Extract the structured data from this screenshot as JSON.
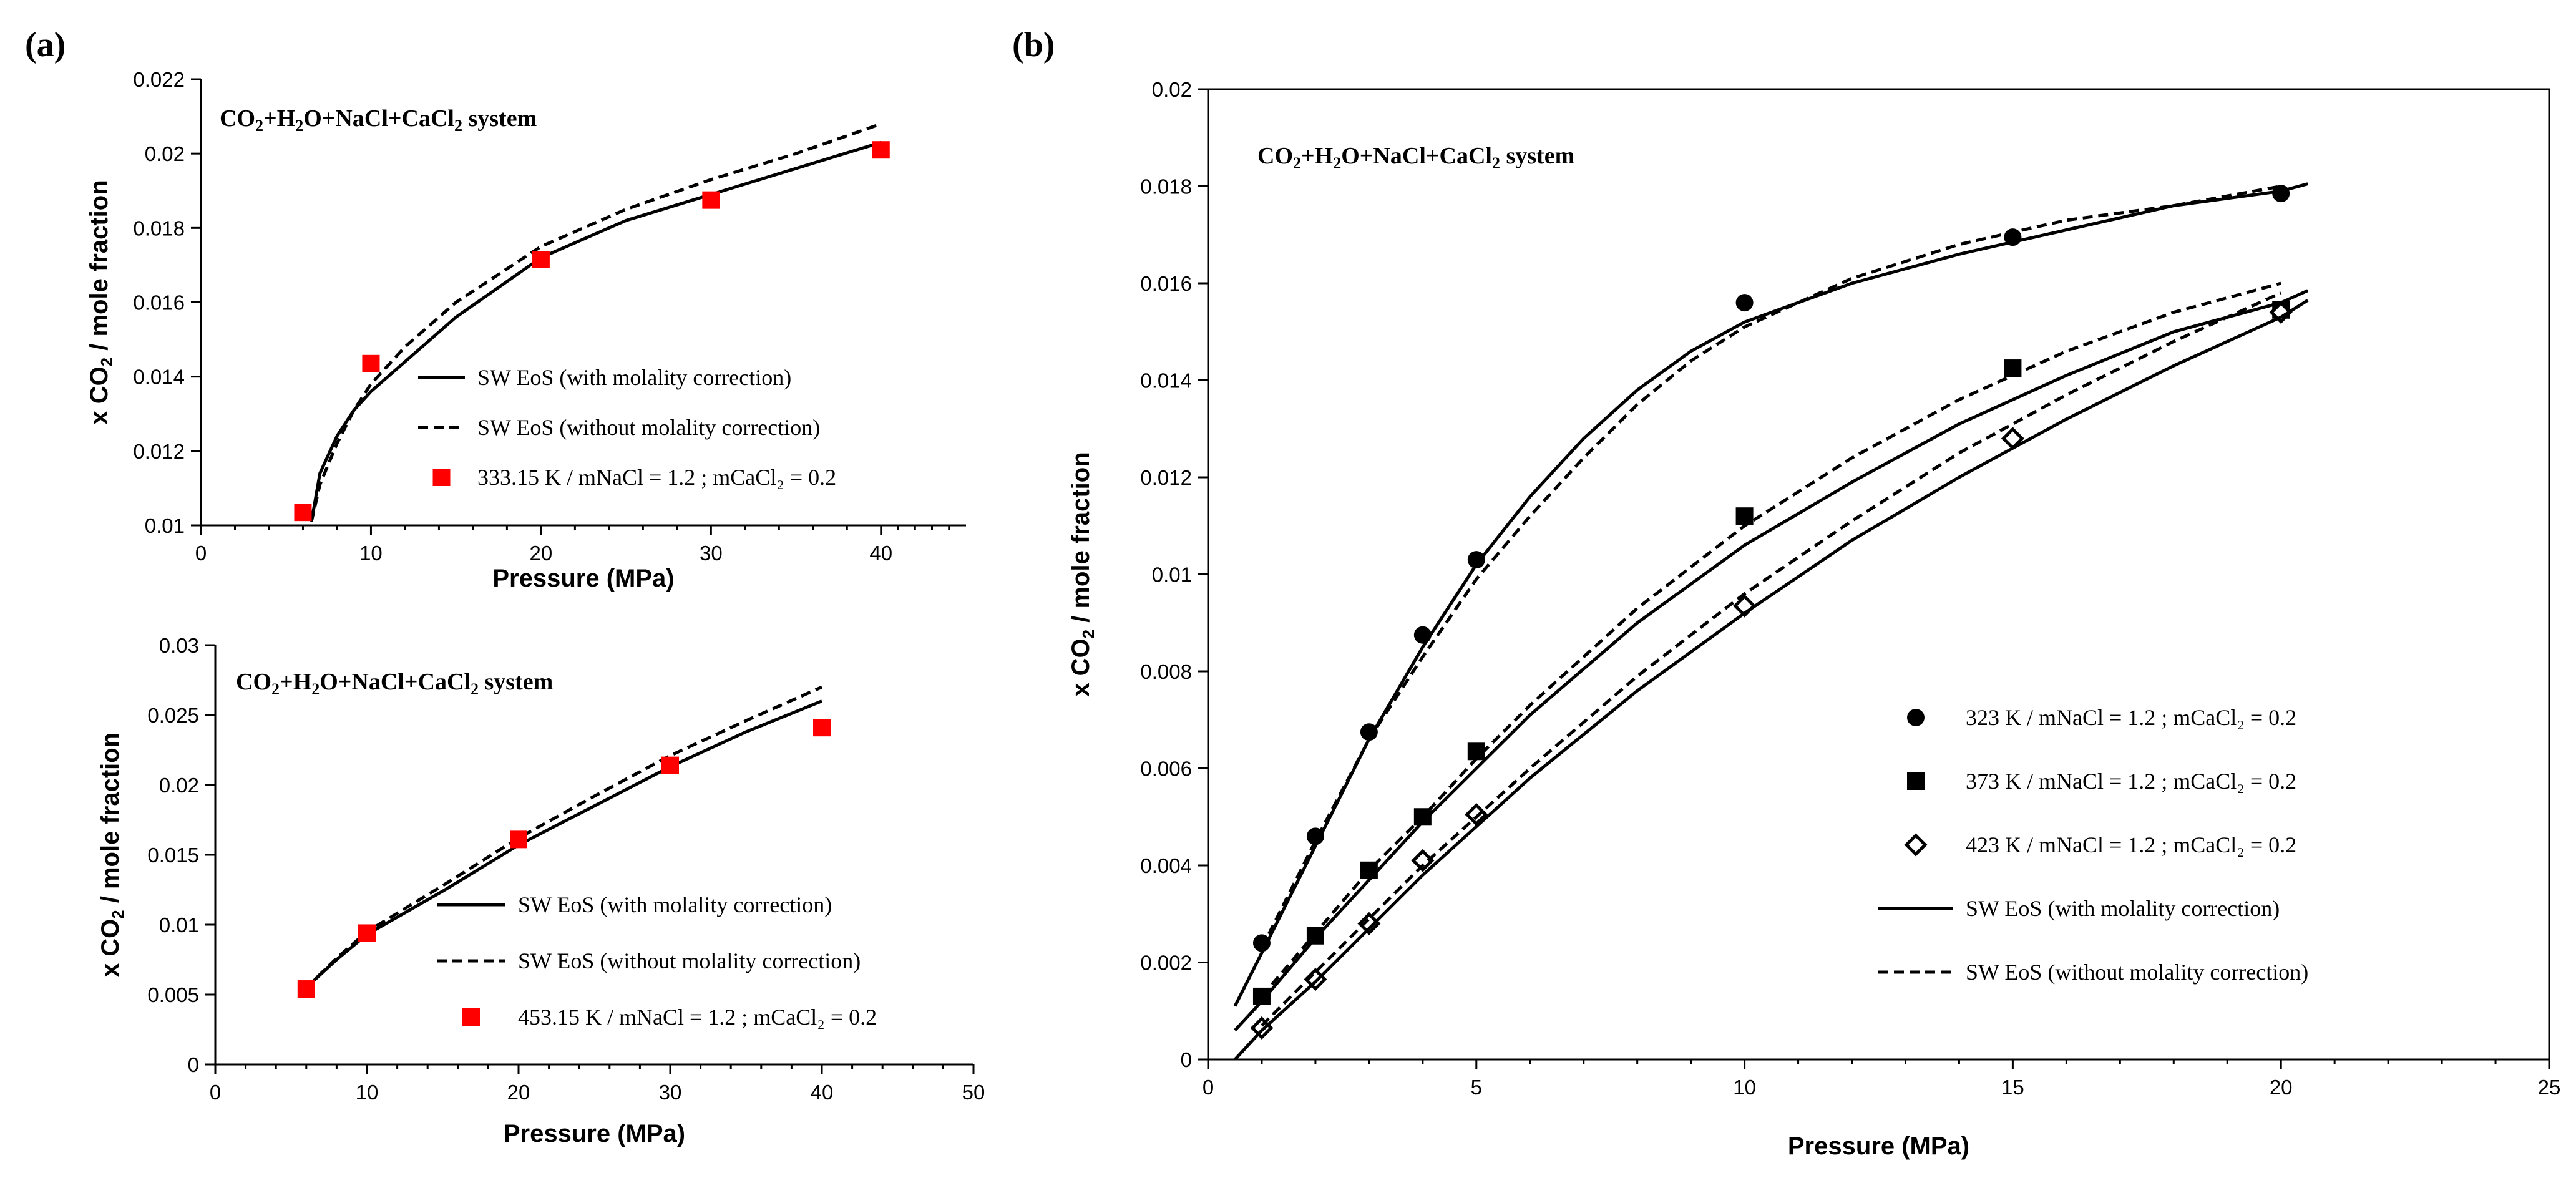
{
  "panel_labels": {
    "a": "(a)",
    "b": "(b)"
  },
  "chart_data": [
    {
      "id": "a-top",
      "type": "line",
      "title_parts": [
        "CO",
        "2",
        "+H",
        "2",
        "O+NaCl+CaCl",
        "2",
        "  system"
      ],
      "xlabel": "Pressure (MPa)",
      "ylabel_parts": [
        "x CO",
        "2",
        " / mole fraction"
      ],
      "xlim": [
        0,
        45
      ],
      "ylim": [
        0.01,
        0.022
      ],
      "xticks": [
        0,
        10,
        20,
        30,
        40
      ],
      "yticks": [
        0.01,
        0.012,
        0.014,
        0.016,
        0.018,
        0.02,
        0.022
      ],
      "ytick_labels": [
        "0.01",
        "0.012",
        "0.014",
        "0.016",
        "0.018",
        "0.02",
        "0.022"
      ],
      "series": [
        {
          "name": "SW EoS (with molality correction)",
          "style": "solid",
          "x": [
            6.5,
            7,
            8,
            9,
            10,
            12,
            15,
            20,
            25,
            30,
            35,
            40
          ],
          "y": [
            0.0101,
            0.0114,
            0.0124,
            0.0131,
            0.0136,
            0.0144,
            0.0156,
            0.0172,
            0.0182,
            0.0189,
            0.0196,
            0.0203
          ]
        },
        {
          "name": "SW EoS (without molality correction)",
          "style": "dashed",
          "x": [
            6.5,
            7,
            8,
            9,
            10,
            12,
            15,
            20,
            25,
            30,
            35,
            40
          ],
          "y": [
            0.0101,
            0.0111,
            0.0122,
            0.0131,
            0.0138,
            0.0148,
            0.016,
            0.0175,
            0.0185,
            0.0193,
            0.02,
            0.0208
          ]
        },
        {
          "name": "333.15 K / mNaCl = 1.2 ; mCaCl₂ = 0.2",
          "style": "marker",
          "marker": "red-square",
          "x": [
            6,
            10,
            20,
            30,
            40
          ],
          "y": [
            0.01035,
            0.01435,
            0.01715,
            0.01875,
            0.0201
          ]
        }
      ]
    },
    {
      "id": "a-bottom",
      "type": "line",
      "title_parts": [
        "CO",
        "2",
        "+H",
        "2",
        "O+NaCl+CaCl",
        "2",
        "  system"
      ],
      "xlabel": "Pressure (MPa)",
      "ylabel_parts": [
        "x CO",
        "2",
        " / mole fraction"
      ],
      "xlim": [
        0,
        50
      ],
      "ylim": [
        0,
        0.03
      ],
      "xticks": [
        0,
        10,
        20,
        30,
        40,
        50
      ],
      "yticks": [
        0,
        0.005,
        0.01,
        0.015,
        0.02,
        0.025,
        0.03
      ],
      "ytick_labels": [
        "0",
        "0.005",
        "0.01",
        "0.015",
        "0.02",
        "0.025",
        "0.03"
      ],
      "series": [
        {
          "name": "SW EoS (with molality correction)",
          "style": "solid",
          "x": [
            6,
            8,
            10,
            15,
            20,
            25,
            30,
            35,
            40
          ],
          "y": [
            0.0055,
            0.0075,
            0.0093,
            0.0124,
            0.0157,
            0.0185,
            0.0213,
            0.0238,
            0.026
          ]
        },
        {
          "name": "SW EoS (without molality correction)",
          "style": "dashed",
          "x": [
            6,
            8,
            10,
            15,
            20,
            25,
            30,
            35,
            40
          ],
          "y": [
            0.0055,
            0.0076,
            0.0095,
            0.0128,
            0.0162,
            0.0192,
            0.0221,
            0.0246,
            0.027
          ]
        },
        {
          "name": "453.15 K / mNaCl = 1.2 ; mCaCl₂ = 0.2",
          "style": "marker",
          "marker": "red-square",
          "x": [
            6,
            10,
            20,
            30,
            40
          ],
          "y": [
            0.0054,
            0.0094,
            0.0161,
            0.0214,
            0.0241
          ]
        }
      ]
    },
    {
      "id": "b",
      "type": "line",
      "title_parts": [
        "CO",
        "2",
        "+H",
        "2",
        "O+NaCl+CaCl",
        "2",
        "  system"
      ],
      "xlabel": "Pressure (MPa)",
      "ylabel_parts": [
        "x CO",
        "2",
        " / mole fraction"
      ],
      "xlim": [
        0,
        25
      ],
      "ylim": [
        0,
        0.02
      ],
      "xticks": [
        0,
        5,
        10,
        15,
        20,
        25
      ],
      "yticks": [
        0,
        0.002,
        0.004,
        0.006,
        0.008,
        0.01,
        0.012,
        0.014,
        0.016,
        0.018,
        0.02
      ],
      "ytick_labels": [
        "0",
        "0.002",
        "0.004",
        "0.006",
        "0.008",
        "0.01",
        "0.012",
        "0.014",
        "0.016",
        "0.018",
        "0.02"
      ],
      "series": [
        {
          "name": "323 K / mNaCl = 1.2 ; mCaCl₂ = 0.2",
          "style": "marker",
          "marker": "circle",
          "x": [
            1,
            2,
            3,
            4,
            5,
            10,
            15,
            20
          ],
          "y": [
            0.0024,
            0.0046,
            0.00675,
            0.00875,
            0.0103,
            0.0156,
            0.01695,
            0.01785
          ]
        },
        {
          "name": "373 K / mNaCl = 1.2 ; mCaCl₂ = 0.2",
          "style": "marker",
          "marker": "square",
          "x": [
            1,
            2,
            3,
            4,
            5,
            10,
            15,
            20
          ],
          "y": [
            0.0013,
            0.00255,
            0.0039,
            0.005,
            0.00635,
            0.0112,
            0.01425,
            0.01545
          ]
        },
        {
          "name": "423 K / mNaCl = 1.2 ; mCaCl₂ = 0.2",
          "style": "marker",
          "marker": "diamond",
          "x": [
            1,
            2,
            3,
            4,
            5,
            10,
            15,
            20
          ],
          "y": [
            0.00065,
            0.00165,
            0.0028,
            0.0041,
            0.00505,
            0.00935,
            0.0128,
            0.0154
          ]
        },
        {
          "name": "SW EoS (with molality correction)",
          "style": "solid",
          "legend": true,
          "x": [
            0.5,
            1,
            2,
            3,
            4,
            5,
            6,
            7,
            8,
            9,
            10,
            12,
            14,
            16,
            18,
            20,
            20.5
          ],
          "y": [
            0.0011,
            0.0022,
            0.0044,
            0.0066,
            0.0085,
            0.0102,
            0.0116,
            0.0128,
            0.0138,
            0.0146,
            0.0152,
            0.016,
            0.0166,
            0.0171,
            0.0176,
            0.0179,
            0.01805
          ]
        },
        {
          "name": "SW EoS (without molality correction)",
          "style": "dashed",
          "legend": true,
          "x": [
            1,
            2,
            3,
            4,
            5,
            6,
            7,
            8,
            9,
            10,
            12,
            14,
            16,
            18,
            20
          ],
          "y": [
            0.0023,
            0.0045,
            0.0066,
            0.0083,
            0.0099,
            0.0112,
            0.0124,
            0.0135,
            0.0144,
            0.0151,
            0.0161,
            0.0168,
            0.0173,
            0.0176,
            0.018
          ]
        },
        {
          "name": "373 K model (with)",
          "style": "solid",
          "legend": false,
          "x": [
            0.5,
            1,
            2,
            3,
            4,
            5,
            6,
            8,
            10,
            12,
            14,
            16,
            18,
            20,
            20.5
          ],
          "y": [
            0.0006,
            0.0012,
            0.0025,
            0.0037,
            0.0049,
            0.006,
            0.0071,
            0.009,
            0.0106,
            0.0119,
            0.0131,
            0.0141,
            0.015,
            0.0156,
            0.01585
          ]
        },
        {
          "name": "373 K model (without)",
          "style": "dashed",
          "legend": false,
          "x": [
            1,
            2,
            3,
            4,
            5,
            6,
            8,
            10,
            12,
            14,
            16,
            18,
            20
          ],
          "y": [
            0.0013,
            0.0026,
            0.0039,
            0.005,
            0.0062,
            0.0073,
            0.0093,
            0.011,
            0.0124,
            0.0136,
            0.0146,
            0.0154,
            0.016
          ]
        },
        {
          "name": "423 K model (with)",
          "style": "solid",
          "legend": false,
          "x": [
            0.5,
            1,
            2,
            3,
            4,
            5,
            6,
            8,
            10,
            12,
            14,
            16,
            18,
            20,
            20.5
          ],
          "y": [
            0.0,
            0.0006,
            0.0016,
            0.0027,
            0.0038,
            0.0048,
            0.0058,
            0.0076,
            0.0092,
            0.0107,
            0.012,
            0.0132,
            0.0143,
            0.0153,
            0.01565
          ]
        },
        {
          "name": "423 K model (without)",
          "style": "dashed",
          "legend": false,
          "x": [
            1,
            2,
            3,
            4,
            5,
            6,
            8,
            10,
            12,
            14,
            16,
            18,
            20
          ],
          "y": [
            0.0007,
            0.0018,
            0.0029,
            0.004,
            0.005,
            0.006,
            0.0079,
            0.0096,
            0.0111,
            0.0125,
            0.0137,
            0.0148,
            0.0158
          ]
        }
      ]
    }
  ]
}
